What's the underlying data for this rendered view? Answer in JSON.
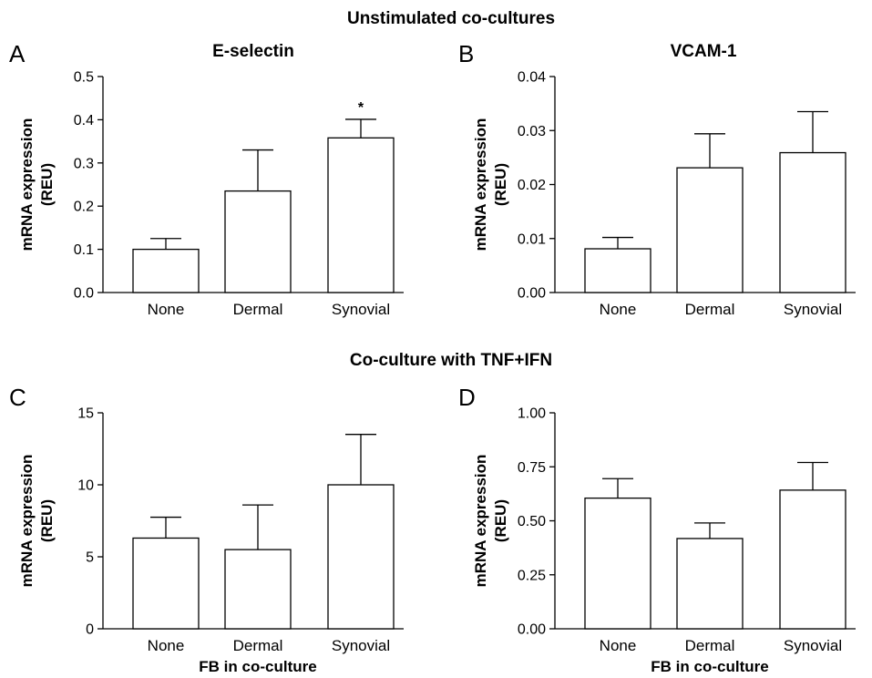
{
  "section_titles": {
    "top": "Unstimulated co-cultures",
    "bottom": "Co-culture with TNF+IFN"
  },
  "chart_data": [
    {
      "type": "bar",
      "panel": "A",
      "title": "E-selectin",
      "ylabel": "mRNA expression\n(REU)",
      "xlabel": "",
      "categories": [
        "None",
        "Dermal",
        "Synovial"
      ],
      "values": [
        0.1,
        0.235,
        0.358
      ],
      "errors": [
        0.025,
        0.095,
        0.043
      ],
      "ylim": [
        0,
        0.5
      ],
      "yticks": [
        0.0,
        0.1,
        0.2,
        0.3,
        0.4,
        0.5
      ],
      "ytick_labels": [
        "0.0",
        "0.1",
        "0.2",
        "0.3",
        "0.4",
        "0.5"
      ],
      "annotations": [
        {
          "category": "Synovial",
          "text": "*"
        }
      ],
      "bar_fill": "#ffffff",
      "bar_stroke": "#000000",
      "grid": false,
      "legend": "none"
    },
    {
      "type": "bar",
      "panel": "B",
      "title": "VCAM-1",
      "ylabel": "mRNA expression\n(REU)",
      "xlabel": "",
      "categories": [
        "None",
        "Dermal",
        "Synovial"
      ],
      "values": [
        0.0081,
        0.0231,
        0.0259
      ],
      "errors": [
        0.0021,
        0.0063,
        0.0076
      ],
      "ylim": [
        0,
        0.04
      ],
      "yticks": [
        0.0,
        0.01,
        0.02,
        0.03,
        0.04
      ],
      "ytick_labels": [
        "0.00",
        "0.01",
        "0.02",
        "0.03",
        "0.04"
      ],
      "annotations": [],
      "bar_fill": "#ffffff",
      "bar_stroke": "#000000",
      "grid": false,
      "legend": "none"
    },
    {
      "type": "bar",
      "panel": "C",
      "title": "",
      "ylabel": "mRNA expression\n(REU)",
      "xlabel": "FB in co-culture",
      "categories": [
        "None",
        "Dermal",
        "Synovial"
      ],
      "values": [
        6.3,
        5.5,
        10.0
      ],
      "errors": [
        1.45,
        3.1,
        3.5
      ],
      "ylim": [
        0,
        15
      ],
      "yticks": [
        0,
        5,
        10,
        15
      ],
      "ytick_labels": [
        "0",
        "5",
        "10",
        "15"
      ],
      "annotations": [],
      "bar_fill": "#ffffff",
      "bar_stroke": "#000000",
      "grid": false,
      "legend": "none"
    },
    {
      "type": "bar",
      "panel": "D",
      "title": "",
      "ylabel": "mRNA expression\n(REU)",
      "xlabel": "FB in co-culture",
      "categories": [
        "None",
        "Dermal",
        "Synovial"
      ],
      "values": [
        0.605,
        0.418,
        0.642
      ],
      "errors": [
        0.09,
        0.072,
        0.128
      ],
      "ylim": [
        0,
        1.0
      ],
      "yticks": [
        0.0,
        0.25,
        0.5,
        0.75,
        1.0
      ],
      "ytick_labels": [
        "0.00",
        "0.25",
        "0.50",
        "0.75",
        "1.00"
      ],
      "annotations": [],
      "bar_fill": "#ffffff",
      "bar_stroke": "#000000",
      "grid": false,
      "legend": "none"
    }
  ]
}
